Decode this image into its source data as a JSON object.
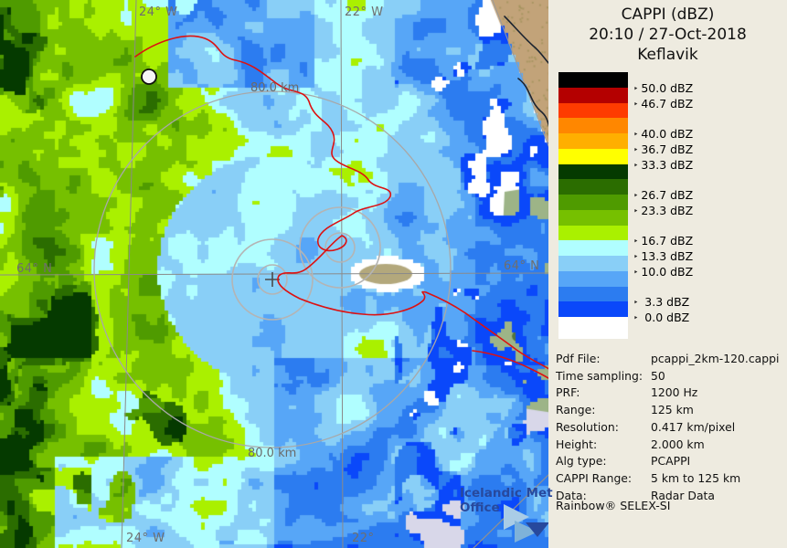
{
  "header": {
    "title": "CAPPI (dBZ)",
    "datetime": "20:10 / 27-Oct-2018",
    "station": "Keflavik"
  },
  "legend": {
    "unit": "dBZ",
    "band_colors": [
      "#000000",
      "#b40000",
      "#fe3b00",
      "#ff8700",
      "#ffaf00",
      "#ffff00",
      "#053a00",
      "#2b6d00",
      "#4f9b00",
      "#76c000",
      "#aaf000",
      "#b0feff",
      "#89cff7",
      "#57a6f7",
      "#2c7cf0",
      "#0a48fa",
      "#ffffff"
    ],
    "tick_labels": [
      {
        "text": "50.0 dBZ",
        "boundary": 1
      },
      {
        "text": "46.7 dBZ",
        "boundary": 2
      },
      {
        "text": "40.0 dBZ",
        "boundary": 4
      },
      {
        "text": "36.7 dBZ",
        "boundary": 5
      },
      {
        "text": "33.3 dBZ",
        "boundary": 6
      },
      {
        "text": "26.7 dBZ",
        "boundary": 8
      },
      {
        "text": "23.3 dBZ",
        "boundary": 9
      },
      {
        "text": "16.7 dBZ",
        "boundary": 11
      },
      {
        "text": "13.3 dBZ",
        "boundary": 12
      },
      {
        "text": "10.0 dBZ",
        "boundary": 13
      },
      {
        "text": " 3.3 dBZ",
        "boundary": 15
      },
      {
        "text": " 0.0 dBZ",
        "boundary": 16
      }
    ]
  },
  "metadata": {
    "rows": [
      {
        "label": "Pdf File:",
        "value": "pcappi_2km-120.cappi"
      },
      {
        "label": "Time sampling:",
        "value": "50"
      },
      {
        "label": "PRF:",
        "value": "1200 Hz"
      },
      {
        "label": "Range:",
        "value": "125 km"
      },
      {
        "label": "Resolution:",
        "value": "0.417 km/pixel"
      },
      {
        "label": "Height:",
        "value": "2.000 km"
      },
      {
        "label": "Alg type:",
        "value": "PCAPPI"
      },
      {
        "label": "CAPPI Range:",
        "value": "5 km to 125 km"
      },
      {
        "label": "Data:",
        "value": "Radar Data"
      }
    ],
    "footer": "Rainbow® SELEX-SI"
  },
  "map": {
    "labels": {
      "meridian_top_left": "24° W",
      "meridian_top_right": "22° W",
      "meridian_bottom_left": "24° W",
      "meridian_bottom_right": "22°",
      "parallel_left": "64° N",
      "parallel_right": "64° N",
      "range_ring_top": "80.0 km",
      "range_ring_bottom": "80.0 km"
    },
    "watermark": {
      "line1": "Icelandic Met",
      "line2": "Office"
    },
    "colors": {
      "sea_no_echo": "#ffffff",
      "out_of_range": "#d8d7e9",
      "land_tan": "#c2a379",
      "land_sage": "#9db487",
      "coastline_red": "#dd1111",
      "coastline_dark": "#1c2430",
      "grid_gray": "#8a8a8a",
      "ring_gray": "#b2b2b2"
    }
  }
}
